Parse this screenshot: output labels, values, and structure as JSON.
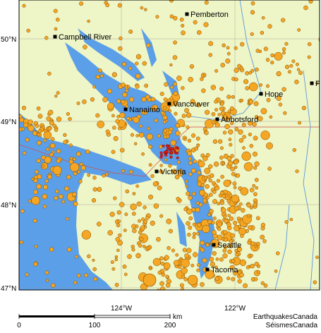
{
  "map": {
    "cities": [
      {
        "label": "Pemberton"
      },
      {
        "label": "Campbell River"
      },
      {
        "label": "Vancouver"
      },
      {
        "label": "Nanaimo"
      },
      {
        "label": "Hope"
      },
      {
        "label": "Abbotsford"
      },
      {
        "label": "Victoria"
      },
      {
        "label": "Seattle"
      },
      {
        "label": "Tacoma"
      },
      {
        "label": "P"
      }
    ],
    "lat_labels": [
      "50°N",
      "49°N",
      "48°N",
      "47°N"
    ],
    "lon_labels": [
      "124°W",
      "122°W"
    ],
    "scale": {
      "ticks": [
        "0",
        "100",
        "200"
      ],
      "unit": "km"
    },
    "credit": [
      "EarthquakesCanada",
      "SéismesCanada"
    ]
  }
}
